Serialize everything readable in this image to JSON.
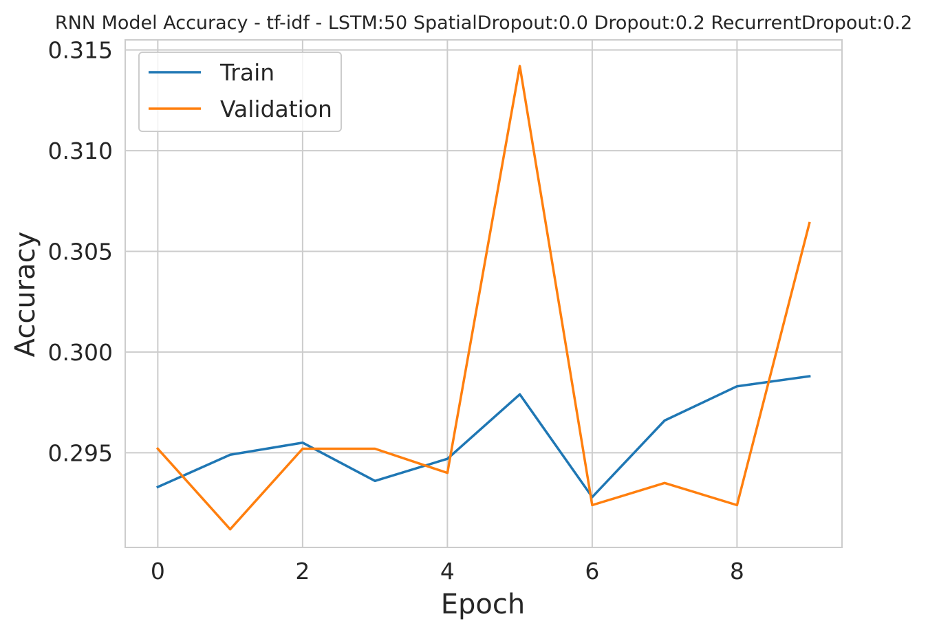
{
  "chart_data": {
    "type": "line",
    "title": "RNN Model Accuracy - tf-idf - LSTM:50 SpatialDropout:0.0 Dropout:0.2 RecurrentDropout:0.2",
    "xlabel": "Epoch",
    "ylabel": "Accuracy",
    "x": [
      0,
      1,
      2,
      3,
      4,
      5,
      6,
      7,
      8,
      9
    ],
    "xlim": [
      -0.45,
      9.45
    ],
    "ylim": [
      0.2903,
      0.3155
    ],
    "xticks": [
      0,
      2,
      4,
      6,
      8
    ],
    "yticks": [
      0.295,
      0.3,
      0.305,
      0.31,
      0.315
    ],
    "xtick_labels": [
      "0",
      "2",
      "4",
      "6",
      "8"
    ],
    "ytick_labels": [
      "0.295",
      "0.300",
      "0.305",
      "0.310",
      "0.315"
    ],
    "grid": true,
    "legend_position": "upper-left",
    "series": [
      {
        "name": "Train",
        "color": "#1f77b4",
        "values": [
          0.2933,
          0.2949,
          0.2955,
          0.2936,
          0.2947,
          0.2979,
          0.2928,
          0.2966,
          0.2983,
          0.2988
        ]
      },
      {
        "name": "Validation",
        "color": "#ff7f0e",
        "values": [
          0.2952,
          0.2912,
          0.2952,
          0.2952,
          0.294,
          0.3142,
          0.2924,
          0.2935,
          0.2924,
          0.3064
        ]
      }
    ]
  }
}
